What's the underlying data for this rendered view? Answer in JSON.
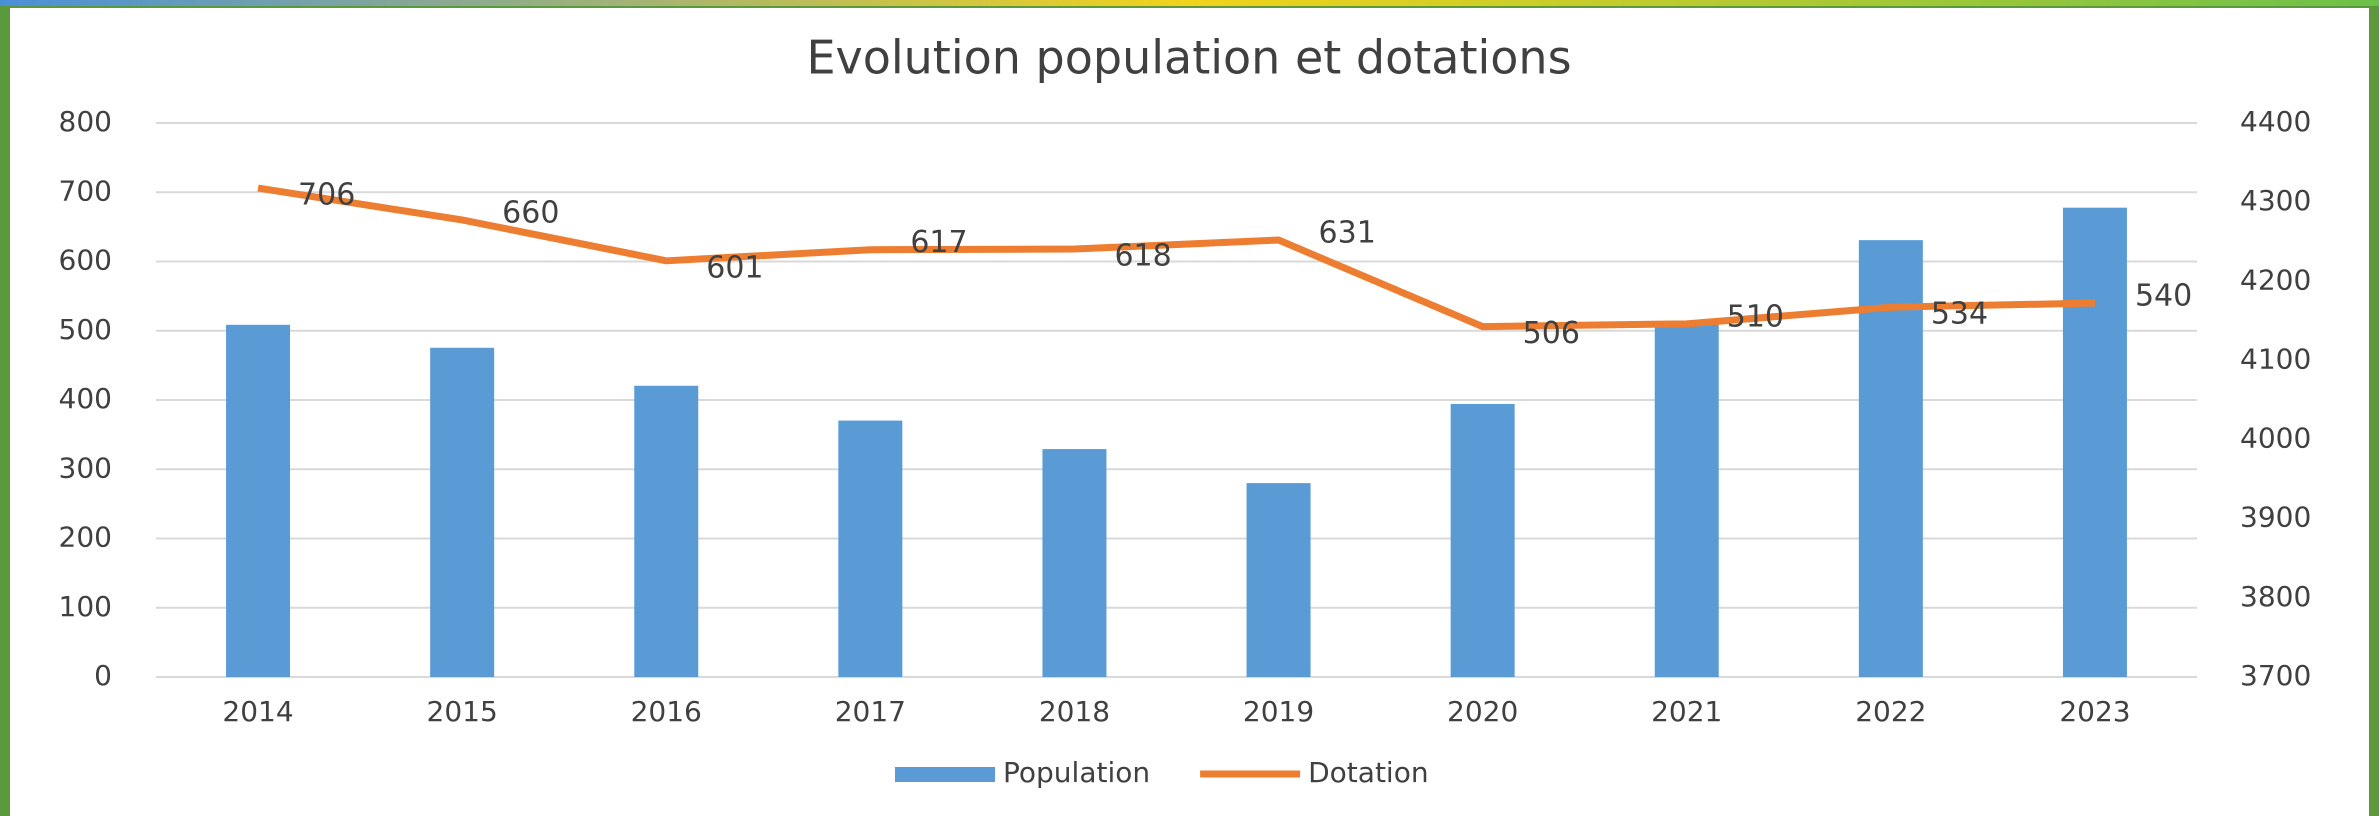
{
  "chart_data": {
    "type": "bar_line",
    "title": "Evolution population et dotations",
    "categories": [
      "2014",
      "2015",
      "2016",
      "2017",
      "2018",
      "2019",
      "2020",
      "2021",
      "2022",
      "2023"
    ],
    "series": [
      {
        "name": "Population",
        "type": "bar",
        "axis": "y2",
        "color": "#5b9bd5",
        "values": [
          4145,
          4116,
          4068,
          4024,
          3988,
          3945,
          4045,
          4145,
          4252,
          4293
        ]
      },
      {
        "name": "Dotation",
        "type": "line",
        "color": "#ed7d31",
        "values": [
          706,
          660,
          601,
          617,
          618,
          631,
          506,
          510,
          534,
          540
        ]
      }
    ],
    "ylim": [
      0,
      800
    ],
    "yticks": [
      0,
      100,
      200,
      300,
      400,
      500,
      600,
      700,
      800
    ],
    "y2lim": [
      3700,
      4400
    ],
    "y2ticks": [
      3700,
      3800,
      3900,
      4000,
      4100,
      4200,
      4300,
      4400
    ],
    "grid": true,
    "legend": "bottom"
  }
}
